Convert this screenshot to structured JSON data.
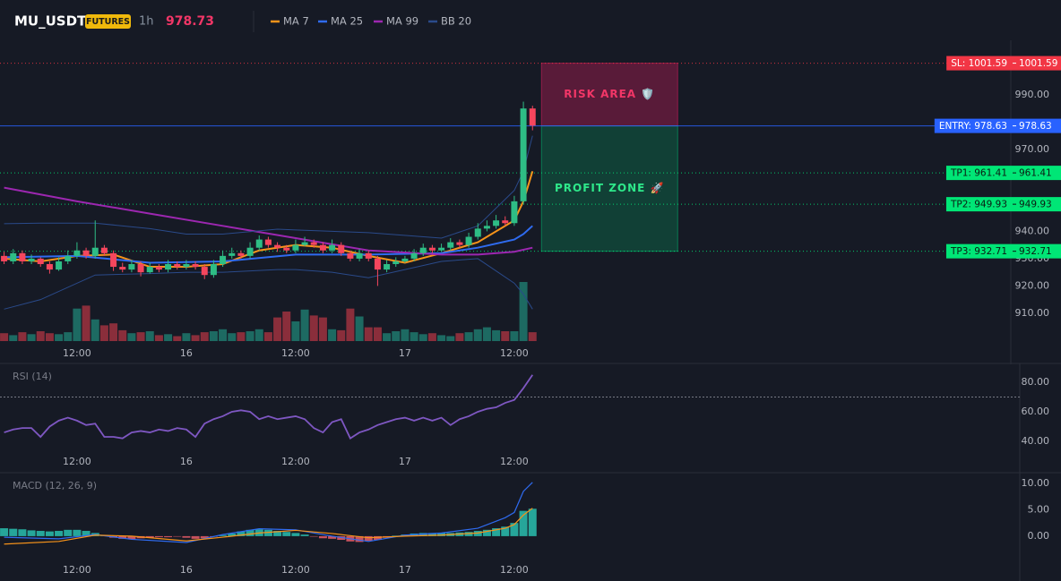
{
  "chart_data": [
    {
      "type": "candlestick",
      "title": "MU_USDT",
      "badge": "FUTURES",
      "interval": "1h",
      "last_price": 978.73,
      "last_price_color": "#f23667",
      "x": [
        0,
        1,
        2,
        3,
        4,
        5,
        6,
        7,
        8,
        9,
        10,
        11,
        12,
        13,
        14,
        15,
        16,
        17,
        18,
        19,
        20,
        21,
        22,
        23,
        24,
        25,
        26,
        27,
        28,
        29,
        30,
        31,
        32,
        33,
        34,
        35,
        36,
        37,
        38,
        39,
        40,
        41,
        42,
        43,
        44,
        45,
        46,
        47,
        48,
        49,
        50,
        51,
        52,
        53,
        54,
        55,
        56,
        57,
        58
      ],
      "open": [
        931,
        929,
        932,
        929,
        930,
        928,
        926,
        929,
        931,
        933,
        931,
        934,
        932,
        927,
        926,
        928,
        925,
        927,
        926,
        928,
        927,
        928,
        927,
        924,
        928,
        931,
        932,
        931,
        934,
        937,
        935,
        934,
        933,
        935,
        936,
        935,
        933,
        935,
        932,
        930,
        932,
        930,
        926,
        928,
        929,
        930,
        932,
        934,
        933,
        934,
        936,
        935,
        938,
        941,
        942,
        944,
        943,
        951,
        985
      ],
      "high": [
        932.5,
        933.5,
        933,
        931.5,
        930.5,
        929,
        930.5,
        933,
        936,
        934,
        944,
        935,
        933,
        928.5,
        929.5,
        929,
        928.5,
        928,
        929.5,
        929,
        929.5,
        929,
        928,
        929.5,
        933,
        934,
        933,
        936,
        938.5,
        938,
        936,
        935,
        937,
        938,
        937,
        936,
        937,
        936,
        933,
        933.5,
        933,
        931,
        929.5,
        930.5,
        931,
        933.5,
        935.5,
        935,
        935.5,
        937.5,
        937,
        939.5,
        943,
        944,
        946,
        945.5,
        953,
        987.5,
        986
      ],
      "low": [
        928,
        928,
        928,
        928,
        927,
        924.5,
        925.5,
        928,
        930,
        930,
        930,
        931,
        925.5,
        925,
        925,
        923.5,
        924.5,
        925,
        925,
        926,
        926,
        926,
        922.5,
        923,
        927,
        930,
        930,
        930,
        933,
        934,
        932.5,
        932,
        932,
        934.5,
        934,
        932,
        932,
        931,
        929,
        929,
        929,
        920,
        925,
        927,
        928.5,
        929,
        931,
        932,
        932.5,
        933,
        934,
        934,
        937,
        940,
        941,
        942,
        942,
        950,
        977
      ],
      "close": [
        929,
        932,
        929,
        930,
        928,
        926,
        929,
        931,
        933,
        931,
        934,
        932,
        927,
        926,
        928,
        925,
        927,
        926,
        928,
        927,
        928,
        927,
        924,
        928,
        931,
        932,
        931,
        934,
        937,
        935,
        934,
        933,
        935,
        936,
        935,
        933,
        935,
        932,
        930,
        932,
        930,
        926,
        928,
        929,
        930,
        932,
        934,
        933,
        934,
        936,
        935,
        938,
        941,
        942,
        944,
        943,
        951,
        985,
        978.73
      ],
      "volume": [
        8,
        6,
        9,
        7,
        10,
        8,
        7,
        9,
        33,
        36,
        22,
        16,
        18,
        11,
        8,
        9,
        10,
        6,
        7,
        5,
        8,
        6,
        9,
        10,
        12,
        8,
        9,
        10,
        12,
        9,
        24,
        30,
        20,
        32,
        26,
        24,
        12,
        11,
        33,
        25,
        14,
        14,
        8,
        10,
        12,
        9,
        7,
        8,
        6,
        5,
        8,
        9,
        12,
        14,
        11,
        10,
        10,
        60,
        9
      ],
      "volume_ylim": [
        0,
        100
      ],
      "up_color": "#2ebd85",
      "down_color": "#f6465d",
      "volume_up_color": "#1d6a62",
      "volume_down_color": "#8a2e3b",
      "series": [
        {
          "name": "MA 7",
          "color": "#f7931a",
          "x": [
            0,
            4,
            8,
            12,
            16,
            20,
            24,
            28,
            32,
            36,
            40,
            44,
            48,
            52,
            56,
            57,
            58
          ],
          "values": [
            930,
            929,
            931,
            931.5,
            927,
            927,
            928,
            933,
            935,
            934,
            931,
            928.5,
            932,
            936,
            944,
            951,
            962
          ]
        },
        {
          "name": "MA 25",
          "color": "#2f6bf0",
          "x": [
            0,
            8,
            16,
            24,
            32,
            40,
            48,
            52,
            56,
            57,
            58
          ],
          "values": [
            930.5,
            931,
            928.5,
            929,
            931.5,
            931.5,
            932,
            934,
            937,
            939,
            942
          ]
        },
        {
          "name": "MA 99",
          "color": "#9c27b0",
          "x": [
            0,
            8,
            16,
            24,
            32,
            40,
            48,
            52,
            56,
            58
          ],
          "values": [
            956,
            951,
            946.5,
            942,
            937.5,
            933,
            931.5,
            931.5,
            932.5,
            934
          ]
        },
        {
          "name": "BB 20",
          "color": "#2a4a8a",
          "x": [
            0,
            4,
            10,
            16,
            20,
            24,
            30,
            32,
            36,
            40,
            48,
            52,
            56,
            57,
            58
          ],
          "upper": [
            942.8,
            943,
            943,
            941,
            939,
            939,
            940.8,
            940.5,
            940,
            939.5,
            937.5,
            942,
            955,
            962,
            975
          ],
          "lower": [
            911.5,
            915,
            924,
            924.5,
            925,
            925,
            926,
            926,
            925,
            923,
            929,
            930,
            921,
            917,
            911.5
          ]
        }
      ],
      "levels": [
        {
          "label": "SL: 1001.59",
          "value": 1001.59,
          "color": "#f23645",
          "label_color": "#ffffff",
          "style": "dotted"
        },
        {
          "label": "ENTRY: 978.63",
          "value": 978.63,
          "color": "#2962ff",
          "label_color": "#ffffff",
          "style": "solid"
        },
        {
          "label": "TP1: 961.41",
          "value": 961.41,
          "color": "#00e676",
          "label_color": "#0b1a12",
          "style": "dotted"
        },
        {
          "label": "TP2: 949.93",
          "value": 949.93,
          "color": "#00e676",
          "label_color": "#0b1a12",
          "style": "dotted"
        },
        {
          "label": "TP3: 932.71",
          "value": 932.71,
          "color": "#00e676",
          "label_color": "#0b1a12",
          "style": "dotted"
        }
      ],
      "zones": [
        {
          "label": "RISK AREA 🛡️",
          "color": "#e91e63"
        },
        {
          "label": "PROFIT ZONE 🚀",
          "color": "#00c878"
        }
      ],
      "xlim": [
        -0.45,
        110.5
      ],
      "xticks": [
        {
          "value": 8,
          "label": "12:00"
        },
        {
          "value": 20,
          "label": "16"
        },
        {
          "value": 32,
          "label": "12:00"
        },
        {
          "value": 44,
          "label": "17"
        },
        {
          "value": 56,
          "label": "12:00"
        }
      ],
      "ylim": [
        899.8,
        1006.7
      ],
      "yticks": [
        {
          "value": 910,
          "label": "910.00"
        },
        {
          "value": 920,
          "label": "920.00"
        },
        {
          "value": 930,
          "label": "930.00"
        },
        {
          "value": 940,
          "label": "940.00"
        },
        {
          "value": 970,
          "label": "970.00"
        },
        {
          "value": 990,
          "label": "990.00"
        }
      ],
      "grid": false
    },
    {
      "type": "line",
      "title": "RSI (14)",
      "color": "#7e57c2",
      "x": [
        0,
        1,
        2,
        3,
        4,
        5,
        6,
        7,
        8,
        9,
        10,
        11,
        12,
        13,
        14,
        15,
        16,
        17,
        18,
        19,
        20,
        21,
        22,
        23,
        24,
        25,
        26,
        27,
        28,
        29,
        30,
        31,
        32,
        33,
        34,
        35,
        36,
        37,
        38,
        39,
        40,
        41,
        42,
        43,
        44,
        45,
        46,
        47,
        48,
        49,
        50,
        51,
        52,
        53,
        54,
        55,
        56,
        57,
        58
      ],
      "values": [
        46,
        48,
        49,
        49,
        43,
        50,
        54,
        56,
        54,
        51,
        52,
        43,
        43,
        42,
        46,
        47,
        46,
        48,
        47,
        49,
        48,
        43,
        52,
        55,
        57,
        60,
        61,
        60,
        55,
        57,
        55,
        56,
        57,
        55,
        49,
        46,
        53,
        55,
        42,
        46,
        48,
        51,
        53,
        55,
        56,
        54,
        56,
        54,
        56,
        51,
        55,
        57,
        60,
        62,
        63,
        66,
        68,
        76,
        85
      ],
      "hline": 70,
      "xlim": [
        -0.45,
        110.5
      ],
      "xticks": [
        {
          "value": 8,
          "label": "12:00"
        },
        {
          "value": 20,
          "label": "16"
        },
        {
          "value": 32,
          "label": "12:00"
        },
        {
          "value": 44,
          "label": "17"
        },
        {
          "value": 56,
          "label": "12:00"
        }
      ],
      "ylim": [
        31.5,
        91.5
      ],
      "yticks": [
        {
          "value": 40,
          "label": "40.00"
        },
        {
          "value": 60,
          "label": "60.00"
        },
        {
          "value": 80,
          "label": "80.00"
        }
      ],
      "grid": false
    },
    {
      "type": "macd",
      "title": "MACD (12, 26, 9)",
      "x": [
        0,
        1,
        2,
        3,
        4,
        5,
        6,
        7,
        8,
        9,
        10,
        11,
        12,
        13,
        14,
        15,
        16,
        17,
        18,
        19,
        20,
        21,
        22,
        23,
        24,
        25,
        26,
        27,
        28,
        29,
        30,
        31,
        32,
        33,
        34,
        35,
        36,
        37,
        38,
        39,
        40,
        41,
        42,
        43,
        44,
        45,
        46,
        47,
        48,
        49,
        50,
        51,
        52,
        53,
        54,
        55,
        56,
        57,
        58
      ],
      "histogram": [
        1.5,
        1.4,
        1.3,
        1.1,
        1.0,
        0.9,
        1.0,
        1.2,
        1.2,
        1.0,
        0.6,
        0.2,
        -0.3,
        -0.5,
        -0.6,
        -0.4,
        -0.3,
        -0.2,
        -0.2,
        -0.1,
        -0.3,
        -0.5,
        -0.4,
        -0.1,
        0.2,
        0.5,
        0.9,
        1.2,
        1.3,
        1.2,
        1.0,
        0.8,
        0.6,
        0.3,
        -0.1,
        -0.4,
        -0.5,
        -0.7,
        -1.0,
        -1.1,
        -0.9,
        -0.7,
        -0.3,
        0.1,
        0.3,
        0.5,
        0.6,
        0.6,
        0.6,
        0.6,
        0.7,
        0.8,
        1.0,
        1.2,
        1.5,
        1.8,
        2.5,
        4.8,
        5.2
      ],
      "positive_color": "#26a69a",
      "negative_color": "#c9525e",
      "series": [
        {
          "color": "#2f6bf0",
          "x": [
            0,
            6,
            10,
            14,
            20,
            24,
            28,
            32,
            36,
            40,
            44,
            48,
            52,
            55,
            56,
            57,
            58
          ],
          "values": [
            -0.2,
            -0.5,
            0.3,
            -0.6,
            -1.2,
            0.3,
            1.4,
            1.2,
            0.0,
            -1.0,
            0.2,
            0.6,
            1.5,
            3.5,
            4.5,
            8.5,
            10.2
          ]
        },
        {
          "color": "#f7931a",
          "x": [
            0,
            6,
            10,
            14,
            20,
            24,
            28,
            32,
            36,
            40,
            44,
            48,
            52,
            55,
            56,
            57,
            58
          ],
          "values": [
            -1.5,
            -1.0,
            0.2,
            0.0,
            -0.9,
            -0.2,
            0.6,
            1.1,
            0.5,
            -0.3,
            0.0,
            0.2,
            0.6,
            1.5,
            2.2,
            4.0,
            5.3
          ]
        }
      ],
      "xlim": [
        -0.45,
        110.5
      ],
      "xticks": [
        {
          "value": 8,
          "label": "12:00"
        },
        {
          "value": 20,
          "label": "16"
        },
        {
          "value": 32,
          "label": "12:00"
        },
        {
          "value": 44,
          "label": "17"
        },
        {
          "value": 56,
          "label": "12:00"
        }
      ],
      "ylim": [
        -4.6,
        11.7
      ],
      "yticks": [
        {
          "value": 0,
          "label": "0.00"
        },
        {
          "value": 5,
          "label": "5.00"
        },
        {
          "value": 10,
          "label": "10.00"
        }
      ],
      "grid": false
    }
  ]
}
